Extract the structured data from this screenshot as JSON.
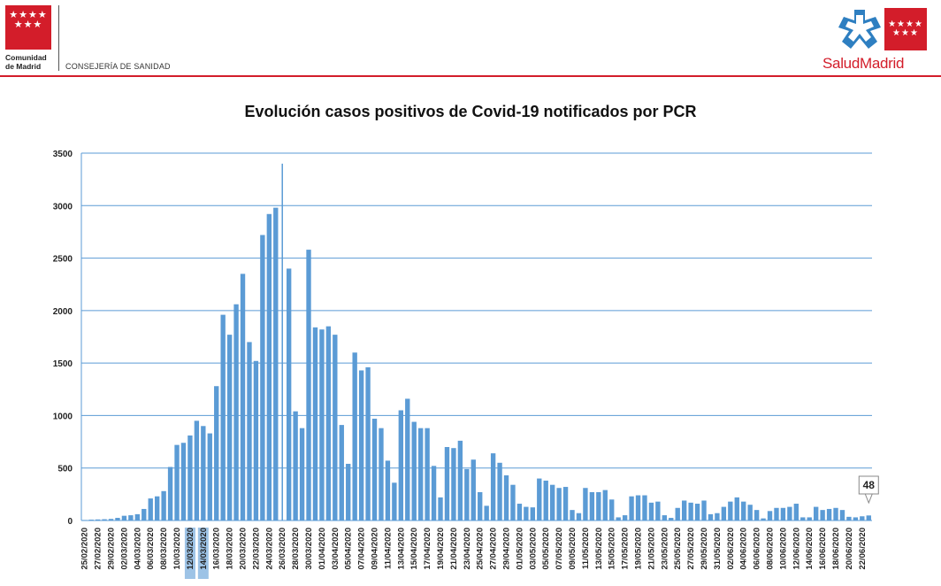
{
  "header": {
    "left_logo_stars": "★★★★\n★★★",
    "org_line1": "Comunidad",
    "org_line2": "de Madrid",
    "department": "CONSEJERÍA DE SANIDAD",
    "brand_part1": "Salud",
    "brand_part2": "Madrid",
    "right_logo_stars": "★★★★\n★★★"
  },
  "colors": {
    "bar": "#5b9bd5",
    "grid": "#5b9bd5",
    "highlight": "#9dc3e6",
    "accent_red": "#d31d2a"
  },
  "chart_data": {
    "type": "bar",
    "title": "Evolución casos positivos de Covid-19 notificados por PCR",
    "xlabel": "",
    "ylabel": "",
    "ylim": [
      0,
      3500
    ],
    "yticks": [
      0,
      500,
      1000,
      1500,
      2000,
      2500,
      3000,
      3500
    ],
    "grid": true,
    "highlighted_ticks": [
      "12/03/2020",
      "14/03/2020"
    ],
    "annotation": {
      "category": "23/06/2020",
      "value": 48,
      "label": "48"
    },
    "categories": [
      "25/02/2020",
      "26/02/2020",
      "27/02/2020",
      "28/02/2020",
      "29/02/2020",
      "01/03/2020",
      "02/03/2020",
      "03/03/2020",
      "04/03/2020",
      "05/03/2020",
      "06/03/2020",
      "07/03/2020",
      "08/03/2020",
      "09/03/2020",
      "10/03/2020",
      "11/03/2020",
      "12/03/2020",
      "13/03/2020",
      "14/03/2020",
      "15/03/2020",
      "16/03/2020",
      "17/03/2020",
      "18/03/2020",
      "19/03/2020",
      "20/03/2020",
      "21/03/2020",
      "22/03/2020",
      "23/03/2020",
      "24/03/2020",
      "25/03/2020",
      "26/03/2020",
      "27/03/2020",
      "28/03/2020",
      "29/03/2020",
      "30/03/2020",
      "31/03/2020",
      "01/04/2020",
      "02/04/2020",
      "03/04/2020",
      "04/04/2020",
      "05/04/2020",
      "06/04/2020",
      "07/04/2020",
      "08/04/2020",
      "09/04/2020",
      "10/04/2020",
      "11/04/2020",
      "12/04/2020",
      "13/04/2020",
      "14/04/2020",
      "15/04/2020",
      "16/04/2020",
      "17/04/2020",
      "18/04/2020",
      "19/04/2020",
      "20/04/2020",
      "21/04/2020",
      "22/04/2020",
      "23/04/2020",
      "24/04/2020",
      "25/04/2020",
      "26/04/2020",
      "27/04/2020",
      "28/04/2020",
      "29/04/2020",
      "30/04/2020",
      "01/05/2020",
      "02/05/2020",
      "03/05/2020",
      "04/05/2020",
      "05/05/2020",
      "06/05/2020",
      "07/05/2020",
      "08/05/2020",
      "09/05/2020",
      "10/05/2020",
      "11/05/2020",
      "12/05/2020",
      "13/05/2020",
      "14/05/2020",
      "15/05/2020",
      "16/05/2020",
      "17/05/2020",
      "18/05/2020",
      "19/05/2020",
      "20/05/2020",
      "21/05/2020",
      "22/05/2020",
      "23/05/2020",
      "24/05/2020",
      "25/05/2020",
      "26/05/2020",
      "27/05/2020",
      "28/05/2020",
      "29/05/2020",
      "30/05/2020",
      "31/05/2020",
      "01/06/2020",
      "02/06/2020",
      "03/06/2020",
      "04/06/2020",
      "05/06/2020",
      "06/06/2020",
      "07/06/2020",
      "08/06/2020",
      "09/06/2020",
      "10/06/2020",
      "11/06/2020",
      "12/06/2020",
      "13/06/2020",
      "14/06/2020",
      "15/06/2020",
      "16/06/2020",
      "17/06/2020",
      "18/06/2020",
      "19/06/2020",
      "20/06/2020",
      "21/06/2020",
      "22/06/2020",
      "23/06/2020"
    ],
    "tick_labels": [
      "25/02/2020",
      "27/02/2020",
      "29/02/2020",
      "02/03/2020",
      "04/03/2020",
      "06/03/2020",
      "08/03/2020",
      "10/03/2020",
      "12/03/2020",
      "14/03/2020",
      "16/03/2020",
      "18/03/2020",
      "20/03/2020",
      "22/03/2020",
      "24/03/2020",
      "26/03/2020",
      "28/03/2020",
      "30/03/2020",
      "01/04/2020",
      "03/04/2020",
      "05/04/2020",
      "07/04/2020",
      "09/04/2020",
      "11/04/2020",
      "13/04/2020",
      "15/04/2020",
      "17/04/2020",
      "19/04/2020",
      "21/04/2020",
      "23/04/2020",
      "25/04/2020",
      "27/04/2020",
      "29/04/2020",
      "01/05/2020",
      "03/05/2020",
      "05/05/2020",
      "07/05/2020",
      "09/05/2020",
      "11/05/2020",
      "13/05/2020",
      "15/05/2020",
      "17/05/2020",
      "19/05/2020",
      "21/05/2020",
      "23/05/2020",
      "25/05/2020",
      "27/05/2020",
      "29/05/2020",
      "31/05/2020",
      "02/06/2020",
      "04/06/2020",
      "06/06/2020",
      "08/06/2020",
      "10/06/2020",
      "12/06/2020",
      "14/06/2020",
      "16/06/2020",
      "18/06/2020",
      "20/06/2020",
      "22/06/2020"
    ],
    "values": [
      5,
      8,
      10,
      12,
      15,
      25,
      45,
      50,
      60,
      110,
      210,
      230,
      280,
      510,
      720,
      740,
      810,
      950,
      900,
      830,
      1280,
      1960,
      1770,
      2060,
      2350,
      1700,
      1520,
      2720,
      2920,
      2980,
      3400,
      2400,
      1040,
      880,
      2580,
      1840,
      1820,
      1850,
      1770,
      910,
      540,
      1600,
      1430,
      1460,
      970,
      880,
      570,
      360,
      1050,
      1160,
      940,
      880,
      880,
      520,
      220,
      700,
      690,
      760,
      490,
      580,
      270,
      140,
      640,
      550,
      430,
      340,
      160,
      130,
      125,
      400,
      380,
      340,
      310,
      320,
      100,
      70,
      310,
      270,
      270,
      290,
      200,
      30,
      50,
      230,
      240,
      240,
      170,
      180,
      50,
      25,
      120,
      190,
      170,
      160,
      190,
      60,
      70,
      130,
      180,
      220,
      180,
      150,
      100,
      20,
      90,
      120,
      120,
      130,
      160,
      30,
      30,
      130,
      100,
      110,
      120,
      100,
      35,
      30,
      40,
      48
    ]
  }
}
